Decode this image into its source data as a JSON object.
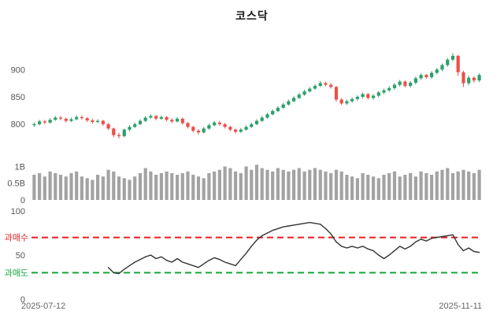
{
  "title": "코스닥",
  "x_axis": {
    "start_label": "2025-07-12",
    "end_label": "2025-11-11"
  },
  "colors": {
    "up": "#2aa06a",
    "down": "#ee4f4a",
    "volume": "#a3a3a3",
    "rsi_line": "#333333",
    "overbought": "#ee1c1c",
    "oversold": "#13a53b",
    "axis_text": "#555555",
    "title_text": "#1a1a1a"
  },
  "chart_data": [
    {
      "type": "candlestick",
      "name": "price",
      "title": "코스닥",
      "x_range": [
        "2025-07-12",
        "2025-11-11"
      ],
      "yticks": [
        800,
        850,
        900
      ],
      "ylim": [
        765,
        935
      ],
      "candles_ohlc": [
        [
          798,
          803,
          795,
          800
        ],
        [
          800,
          808,
          798,
          805
        ],
        [
          805,
          808,
          800,
          803
        ],
        [
          803,
          811,
          801,
          808
        ],
        [
          808,
          815,
          806,
          812
        ],
        [
          812,
          815,
          807,
          810
        ],
        [
          810,
          812,
          803,
          806
        ],
        [
          806,
          812,
          804,
          809
        ],
        [
          809,
          816,
          807,
          813
        ],
        [
          813,
          816,
          808,
          811
        ],
        [
          811,
          813,
          804,
          807
        ],
        [
          807,
          810,
          801,
          804
        ],
        [
          804,
          809,
          802,
          806
        ],
        [
          806,
          808,
          797,
          800
        ],
        [
          800,
          802,
          789,
          792
        ],
        [
          792,
          794,
          776,
          780
        ],
        [
          780,
          784,
          774,
          778
        ],
        [
          778,
          792,
          776,
          790
        ],
        [
          790,
          798,
          787,
          795
        ],
        [
          795,
          803,
          793,
          800
        ],
        [
          800,
          809,
          798,
          806
        ],
        [
          806,
          815,
          804,
          812
        ],
        [
          812,
          818,
          810,
          815
        ],
        [
          815,
          817,
          807,
          810
        ],
        [
          810,
          816,
          808,
          813
        ],
        [
          813,
          815,
          805,
          808
        ],
        [
          808,
          811,
          802,
          805
        ],
        [
          805,
          813,
          803,
          810
        ],
        [
          810,
          812,
          799,
          802
        ],
        [
          802,
          804,
          792,
          795
        ],
        [
          795,
          797,
          785,
          788
        ],
        [
          788,
          791,
          781,
          785
        ],
        [
          785,
          795,
          783,
          792
        ],
        [
          792,
          801,
          790,
          798
        ],
        [
          798,
          806,
          796,
          803
        ],
        [
          803,
          806,
          797,
          800
        ],
        [
          800,
          802,
          792,
          795
        ],
        [
          795,
          797,
          787,
          790
        ],
        [
          790,
          792,
          783,
          786
        ],
        [
          786,
          793,
          784,
          790
        ],
        [
          790,
          798,
          788,
          795
        ],
        [
          795,
          803,
          793,
          800
        ],
        [
          800,
          809,
          798,
          806
        ],
        [
          806,
          815,
          804,
          812
        ],
        [
          812,
          821,
          810,
          818
        ],
        [
          818,
          827,
          816,
          824
        ],
        [
          824,
          833,
          822,
          830
        ],
        [
          830,
          839,
          828,
          836
        ],
        [
          836,
          845,
          834,
          842
        ],
        [
          842,
          851,
          840,
          848
        ],
        [
          848,
          857,
          846,
          854
        ],
        [
          854,
          863,
          852,
          860
        ],
        [
          860,
          868,
          858,
          865
        ],
        [
          865,
          873,
          863,
          870
        ],
        [
          870,
          879,
          868,
          875
        ],
        [
          875,
          878,
          869,
          872
        ],
        [
          872,
          875,
          865,
          868
        ],
        [
          868,
          870,
          841,
          845
        ],
        [
          845,
          848,
          835,
          838
        ],
        [
          838,
          845,
          835,
          842
        ],
        [
          842,
          849,
          839,
          846
        ],
        [
          846,
          853,
          843,
          850
        ],
        [
          850,
          858,
          847,
          855
        ],
        [
          855,
          857,
          845,
          848
        ],
        [
          848,
          855,
          845,
          852
        ],
        [
          852,
          861,
          849,
          858
        ],
        [
          858,
          865,
          855,
          862
        ],
        [
          862,
          869,
          859,
          866
        ],
        [
          866,
          875,
          863,
          872
        ],
        [
          872,
          881,
          869,
          878
        ],
        [
          878,
          880,
          867,
          870
        ],
        [
          870,
          879,
          867,
          876
        ],
        [
          876,
          887,
          873,
          884
        ],
        [
          884,
          893,
          881,
          890
        ],
        [
          890,
          892,
          883,
          886
        ],
        [
          886,
          897,
          883,
          894
        ],
        [
          894,
          903,
          891,
          900
        ],
        [
          900,
          911,
          897,
          908
        ],
        [
          908,
          921,
          905,
          918
        ],
        [
          918,
          930,
          915,
          925
        ],
        [
          925,
          927,
          888,
          895
        ],
        [
          895,
          898,
          868,
          875
        ],
        [
          875,
          889,
          871,
          885
        ],
        [
          885,
          888,
          876,
          880
        ],
        [
          880,
          893,
          877,
          890
        ]
      ]
    },
    {
      "type": "bar",
      "name": "volume",
      "yticks": [
        {
          "value": 0,
          "label": "0"
        },
        {
          "value": 0.5,
          "label": "0.5B"
        },
        {
          "value": 1,
          "label": "1B"
        }
      ],
      "ylim": [
        0,
        1.15
      ],
      "values_billions": [
        0.75,
        0.8,
        0.7,
        0.85,
        0.8,
        0.75,
        0.7,
        0.8,
        0.85,
        0.7,
        0.65,
        0.6,
        0.75,
        0.7,
        0.9,
        0.85,
        0.7,
        0.65,
        0.6,
        0.7,
        0.8,
        0.95,
        0.85,
        0.75,
        0.8,
        0.85,
        0.8,
        0.75,
        0.8,
        0.85,
        0.75,
        0.7,
        0.65,
        0.8,
        0.85,
        0.9,
        1.0,
        0.95,
        0.85,
        0.8,
        1.0,
        0.9,
        1.05,
        0.95,
        0.9,
        0.85,
        0.95,
        0.9,
        0.85,
        0.9,
        0.95,
        0.85,
        0.9,
        0.95,
        0.9,
        0.85,
        0.8,
        0.9,
        0.85,
        0.75,
        0.7,
        0.65,
        0.8,
        0.75,
        0.7,
        0.65,
        0.75,
        0.8,
        0.85,
        0.7,
        0.75,
        0.8,
        0.7,
        0.85,
        0.8,
        0.75,
        0.85,
        0.9,
        0.95,
        0.8,
        0.85,
        0.9,
        0.85,
        0.8,
        0.9
      ]
    },
    {
      "type": "line",
      "name": "oscillator",
      "yticks": [
        0,
        50,
        100
      ],
      "ylim": [
        0,
        100
      ],
      "reference_lines": [
        {
          "label": "과매수",
          "value": 70,
          "color": "#ee1c1c",
          "style": "dashed"
        },
        {
          "label": "과매도",
          "value": 30,
          "color": "#13a53b",
          "style": "dashed"
        }
      ],
      "values": [
        null,
        null,
        null,
        null,
        null,
        null,
        null,
        null,
        null,
        null,
        null,
        null,
        null,
        null,
        36,
        30,
        29,
        34,
        38,
        42,
        45,
        48,
        50,
        46,
        48,
        44,
        42,
        46,
        42,
        40,
        38,
        36,
        40,
        44,
        47,
        45,
        42,
        40,
        38,
        45,
        52,
        60,
        67,
        72,
        75,
        78,
        80,
        82,
        83,
        84,
        85,
        86,
        87,
        86,
        85,
        80,
        74,
        65,
        60,
        58,
        60,
        58,
        60,
        57,
        55,
        50,
        46,
        50,
        55,
        60,
        57,
        60,
        65,
        68,
        66,
        69,
        70,
        71,
        72,
        73,
        62,
        55,
        58,
        54,
        53
      ]
    }
  ]
}
